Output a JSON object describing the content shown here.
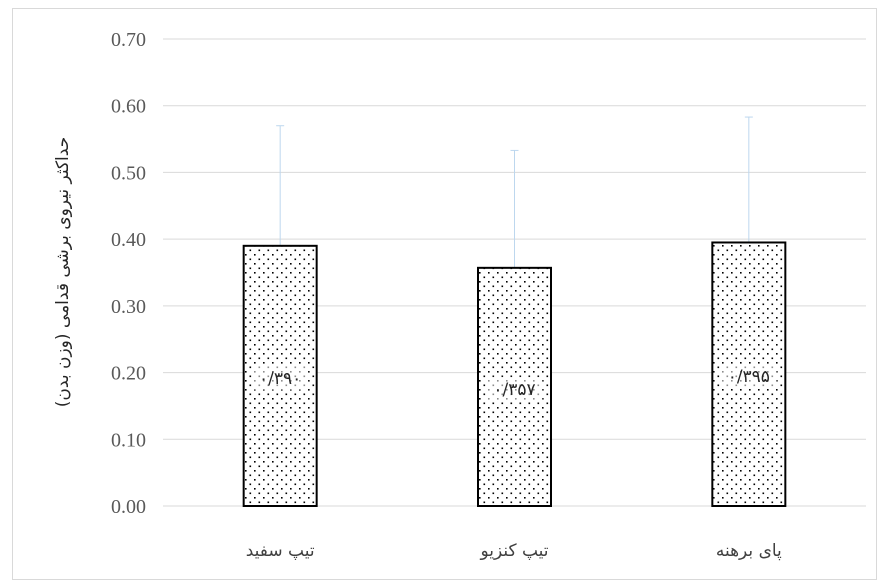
{
  "chart_data": {
    "type": "bar",
    "title": "",
    "xlabel": "",
    "ylabel": "حداکثر نیروی برشی قدامی (وزن بدن)",
    "categories": [
      "تیپ سفید",
      "تیپ کنزیو",
      "پای برهنه"
    ],
    "series": [
      {
        "values": [
          0.39,
          0.357,
          0.395
        ],
        "error_upper": [
          0.18,
          0.176,
          0.188
        ],
        "data_labels": [
          "۰/۳۹۰",
          "۰/۳۵۷",
          "۰/۳۹۵"
        ]
      }
    ],
    "ylim": [
      0,
      0.7
    ],
    "yticks": [
      "0.00",
      "0.10",
      "0.20",
      "0.30",
      "0.40",
      "0.50",
      "0.60",
      "0.70"
    ],
    "grid": true,
    "legend": "none",
    "colors": {
      "bar_fill": "#ffffff",
      "bar_outline": "#000000",
      "bar_pattern_dots": "#000000",
      "gridline": "#d9d9d9",
      "error_bar": "#bdd7ee"
    }
  }
}
